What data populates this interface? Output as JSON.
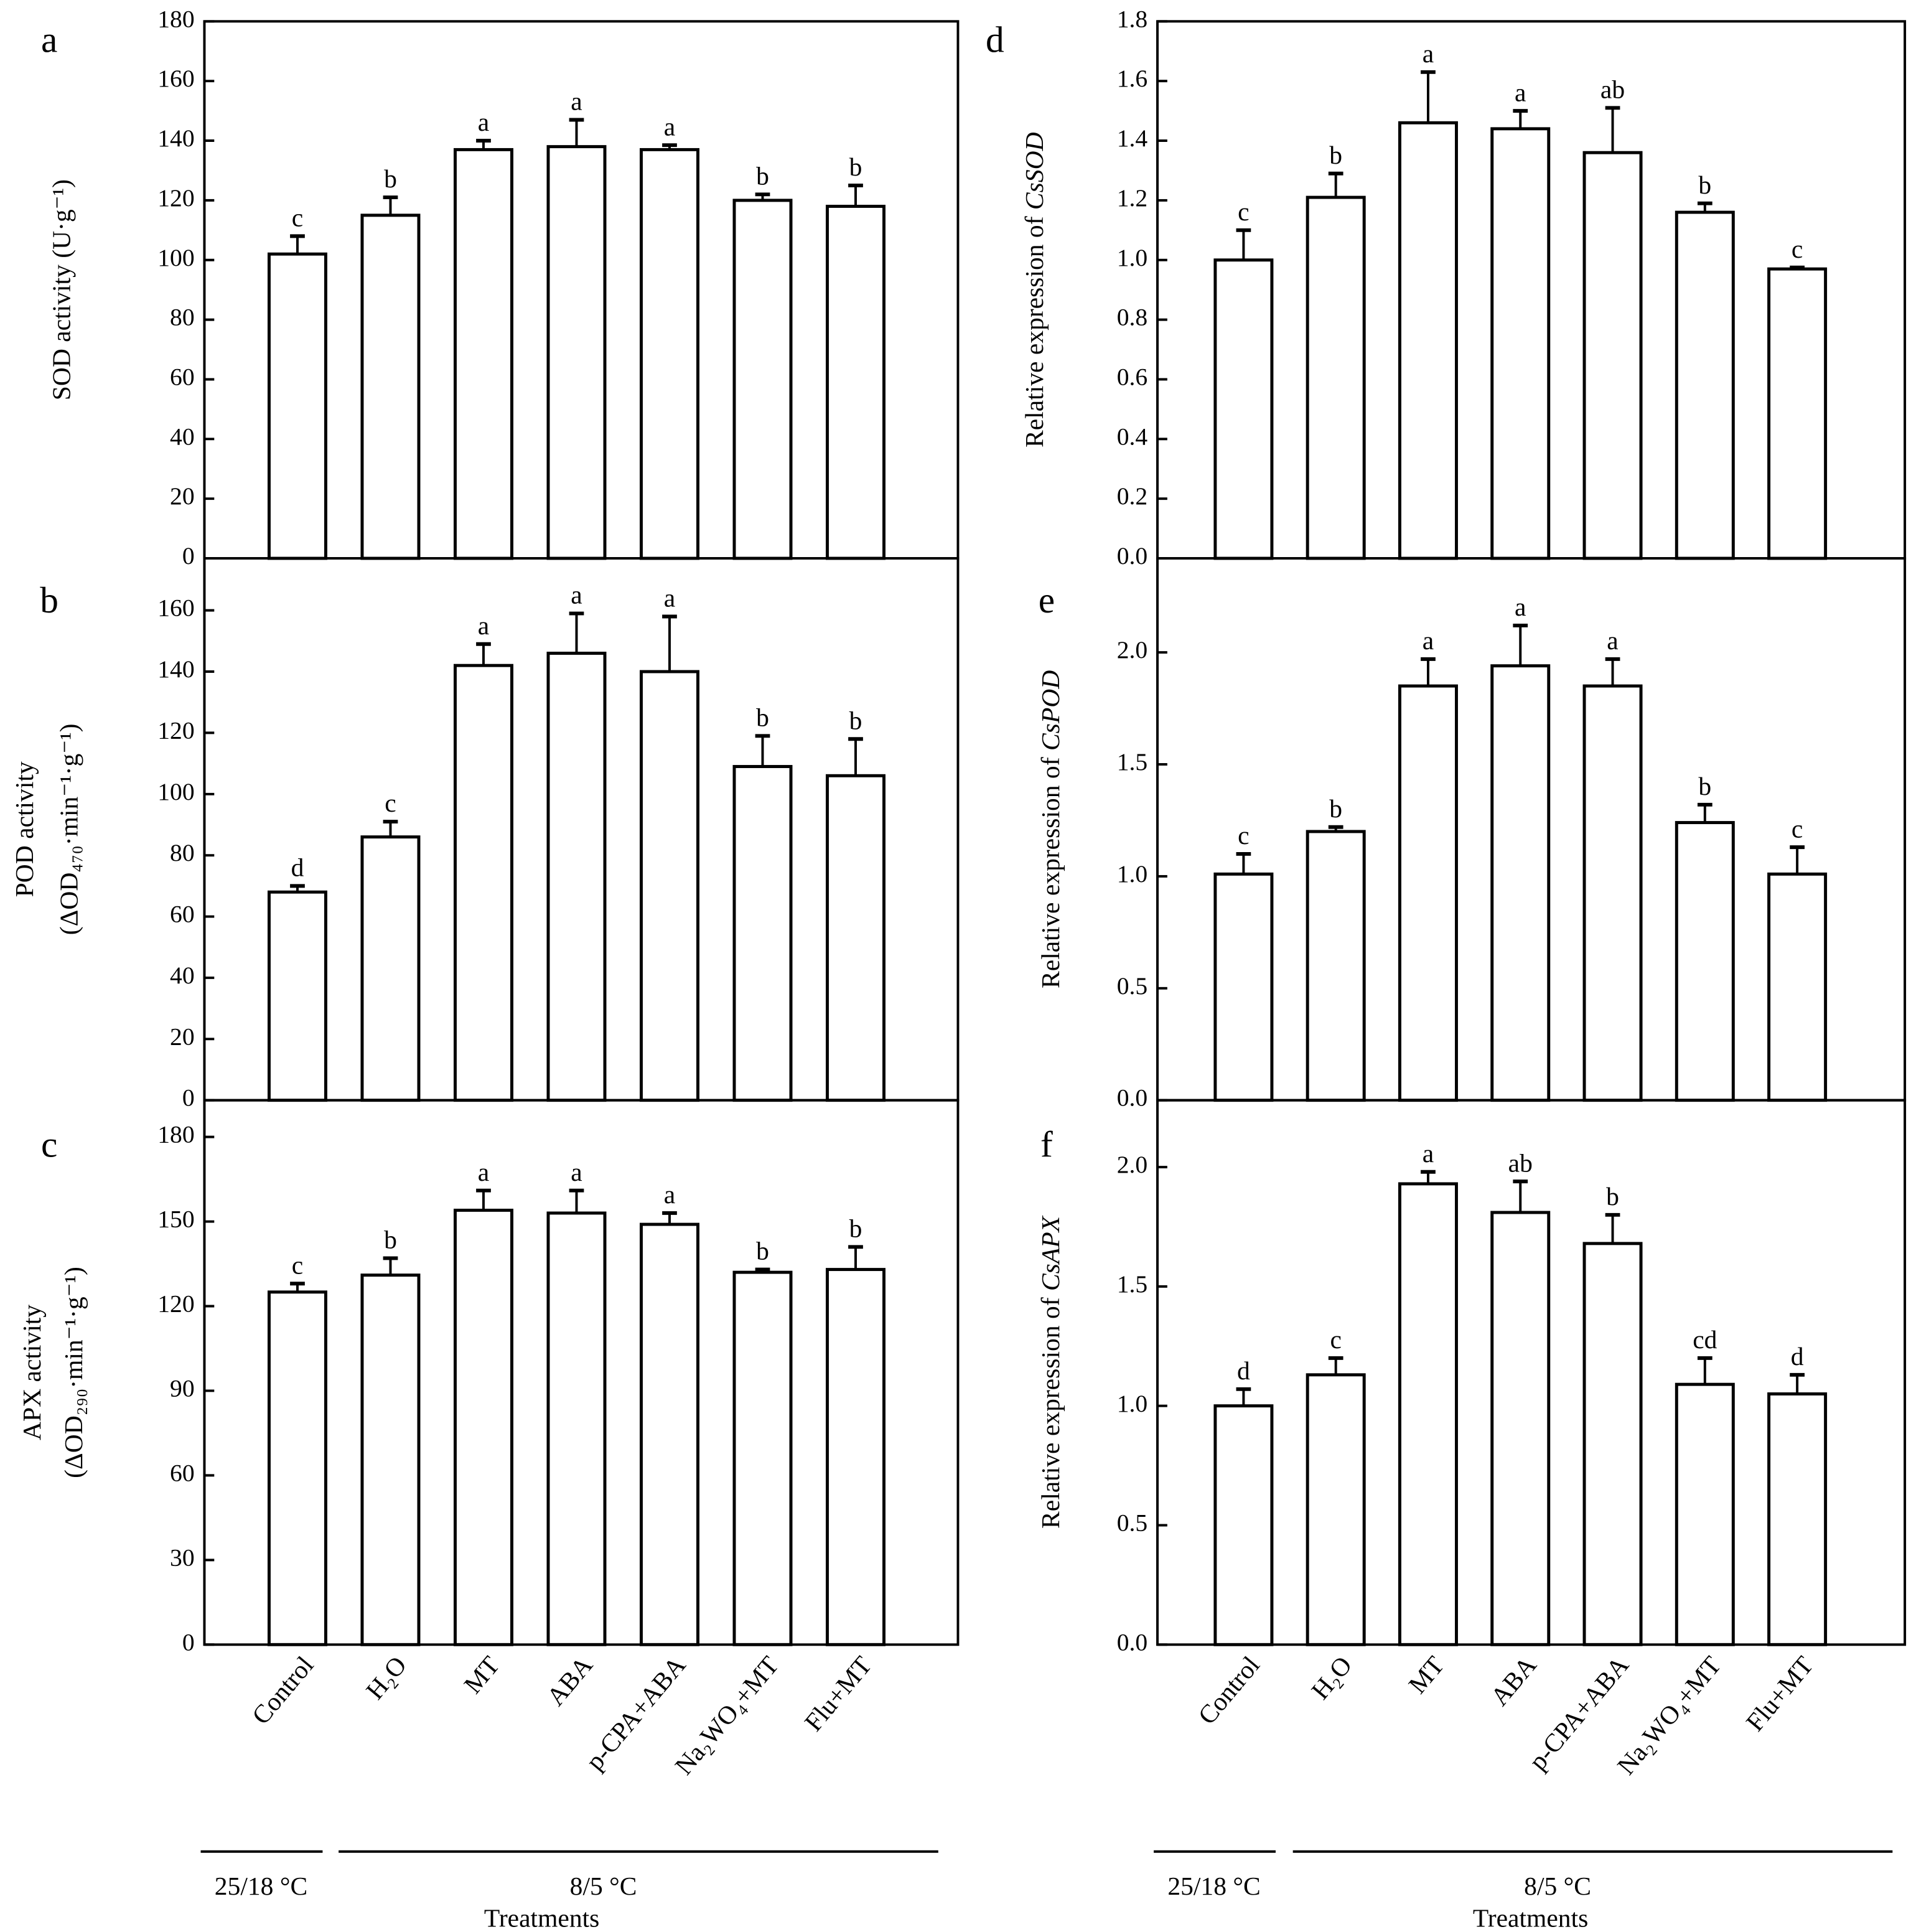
{
  "chart_data": [
    {
      "panel": "a",
      "type": "bar",
      "ylabel": [
        "SOD activity (U·g⁻¹)"
      ],
      "ylim": [
        0,
        180
      ],
      "yticks": [
        0,
        20,
        40,
        60,
        80,
        100,
        120,
        140,
        160,
        180
      ],
      "categories": [
        "Control",
        "H₂O",
        "MT",
        "ABA",
        "p-CPA+ABA",
        "Na₂WO₄+MT",
        "Flu+MT"
      ],
      "values": [
        102,
        115,
        137,
        138,
        137,
        120,
        118
      ],
      "errors": [
        6,
        6,
        3,
        9,
        1.5,
        2,
        7
      ],
      "letters": [
        "c",
        "b",
        "a",
        "a",
        "a",
        "b",
        "b"
      ]
    },
    {
      "panel": "b",
      "type": "bar",
      "ylabel": [
        "POD activity",
        "(ΔOD₄₇₀·min⁻¹·g⁻¹)"
      ],
      "ylim": [
        0,
        177
      ],
      "yticks": [
        0,
        20,
        40,
        60,
        80,
        100,
        120,
        140,
        160
      ],
      "categories": [
        "Control",
        "H₂O",
        "MT",
        "ABA",
        "p-CPA+ABA",
        "Na₂WO₄+MT",
        "Flu+MT"
      ],
      "values": [
        68,
        86,
        142,
        146,
        140,
        109,
        106
      ],
      "errors": [
        2,
        5,
        7,
        13,
        18,
        10,
        12
      ],
      "letters": [
        "d",
        "c",
        "a",
        "a",
        "a",
        "b",
        "b"
      ]
    },
    {
      "panel": "c",
      "type": "bar",
      "ylabel": [
        "APX activity",
        "(ΔOD₂₉₀·min⁻¹·g⁻¹)"
      ],
      "ylim": [
        0,
        193
      ],
      "yticks": [
        0,
        30,
        60,
        90,
        120,
        150,
        180
      ],
      "categories": [
        "Control",
        "H₂O",
        "MT",
        "ABA",
        "p-CPA+ABA",
        "Na₂WO₄+MT",
        "Flu+MT"
      ],
      "values": [
        125,
        131,
        154,
        153,
        149,
        132,
        133
      ],
      "errors": [
        3,
        6,
        7,
        8,
        4,
        1,
        8
      ],
      "letters": [
        "c",
        "b",
        "a",
        "a",
        "a",
        "b",
        "b"
      ]
    },
    {
      "panel": "d",
      "type": "bar",
      "ylabel": [
        "Relative expression of ",
        "CsSOD"
      ],
      "ylim": [
        0,
        1.8
      ],
      "yticks": [
        0.0,
        0.2,
        0.4,
        0.6,
        0.8,
        1.0,
        1.2,
        1.4,
        1.6,
        1.8
      ],
      "decimals": 1,
      "categories": [
        "Control",
        "H₂O",
        "MT",
        "ABA",
        "p-CPA+ABA",
        "Na₂WO₄+MT",
        "Flu+MT"
      ],
      "values": [
        1.0,
        1.21,
        1.46,
        1.44,
        1.36,
        1.16,
        0.97
      ],
      "errors": [
        0.1,
        0.08,
        0.17,
        0.06,
        0.15,
        0.03,
        0.005
      ],
      "letters": [
        "c",
        "b",
        "a",
        "a",
        "ab",
        "b",
        "c"
      ]
    },
    {
      "panel": "e",
      "type": "bar",
      "ylabel": [
        "Relative expression of ",
        "CsPOD"
      ],
      "ylim": [
        0,
        2.42
      ],
      "yticks": [
        0.0,
        0.5,
        1.0,
        1.5,
        2.0
      ],
      "decimals": 1,
      "categories": [
        "Control",
        "H₂O",
        "MT",
        "ABA",
        "p-CPA+ABA",
        "Na₂WO₄+MT",
        "Flu+MT"
      ],
      "values": [
        1.01,
        1.2,
        1.85,
        1.94,
        1.85,
        1.24,
        1.01
      ],
      "errors": [
        0.09,
        0.02,
        0.12,
        0.18,
        0.12,
        0.08,
        0.12
      ],
      "letters": [
        "c",
        "b",
        "a",
        "a",
        "a",
        "b",
        "c"
      ]
    },
    {
      "panel": "f",
      "type": "bar",
      "ylabel": [
        "Relative expression of ",
        "CsAPX"
      ],
      "ylim": [
        0,
        2.28
      ],
      "yticks": [
        0.0,
        0.5,
        1.0,
        1.5,
        2.0
      ],
      "decimals": 1,
      "categories": [
        "Control",
        "H₂O",
        "MT",
        "ABA",
        "p-CPA+ABA",
        "Na₂WO₄+MT",
        "Flu+MT"
      ],
      "values": [
        1.0,
        1.13,
        1.93,
        1.81,
        1.68,
        1.09,
        1.05
      ],
      "errors": [
        0.07,
        0.07,
        0.05,
        0.13,
        0.12,
        0.11,
        0.08
      ],
      "letters": [
        "d",
        "c",
        "a",
        "ab",
        "b",
        "cd",
        "d"
      ]
    }
  ],
  "xaxis": {
    "group1": "25/18 °C",
    "group2": "8/5 °C",
    "title": "Treatments"
  },
  "colors": {
    "bar_fill": "#ffffff",
    "stroke": "#000000"
  }
}
